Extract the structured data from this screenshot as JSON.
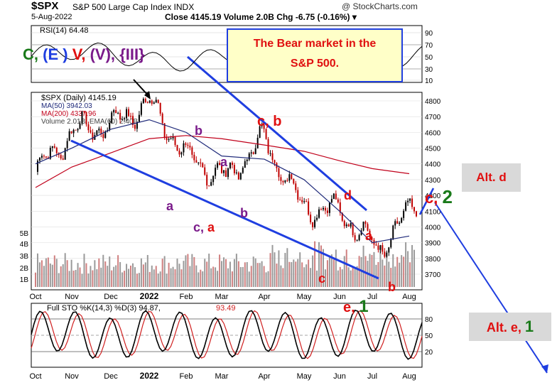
{
  "header": {
    "symbol": "$SPX",
    "name": "S&P 500 Large Cap Index INDX",
    "brand": "@ StockCharts.com",
    "date": "5-Aug-2022",
    "quote": "Close 4145.19  Volume 2.0B  Chg -6.75 (-0.16%) ▾"
  },
  "callout": {
    "line1": "The Bear market in the",
    "line2": "S&P 500."
  },
  "alt_d": "Alt. d",
  "alt_e": {
    "text": "Alt. e, ",
    "num": "1"
  },
  "wave_title": {
    "c": "C,",
    "e": "(E )",
    "v": "V,",
    "pv": "(V),",
    "iii": "{III}"
  },
  "wave_labels": [
    {
      "t": "b",
      "color": "#7a1a8a"
    },
    {
      "t": "a",
      "color": "#7a1a8a"
    },
    {
      "t": "a",
      "color": "#7a1a8a"
    },
    {
      "t": "b",
      "color": "#7a1a8a"
    },
    {
      "t": "c, a",
      "parts": [
        [
          "c, ",
          "#7a1a8a"
        ],
        [
          "a",
          "#e01010"
        ]
      ]
    },
    {
      "t": "c, b",
      "parts": [
        [
          "c, ",
          "#e01010"
        ],
        [
          "b",
          "#e01010"
        ]
      ]
    },
    {
      "t": "d",
      "color": "#e01010"
    },
    {
      "t": "a",
      "color": "#e01010"
    },
    {
      "t": "c",
      "color": "#e01010"
    },
    {
      "t": "b",
      "color": "#e01010"
    },
    {
      "t": "e, 1",
      "parts": [
        [
          "e, ",
          "#e01010"
        ],
        [
          "1",
          "#1a7a1a"
        ]
      ]
    },
    {
      "t": "c, 2",
      "parts": [
        [
          "c, ",
          "#e01010"
        ],
        [
          "2",
          "#1a7a1a"
        ]
      ]
    }
  ],
  "rsi": {
    "label": "RSI(14) 64.48",
    "ticks": [
      "90",
      "70",
      "50",
      "30",
      "10"
    ]
  },
  "price": {
    "legend": [
      "$SPX (Daily) 4145.19",
      "MA(50) 3942.03",
      "MA(200) 4337.96",
      "Volume 2.01B, EMA(60) 2.40B"
    ],
    "ticks": [
      "4800",
      "4700",
      "4600",
      "4500",
      "4400",
      "4300",
      "4200",
      "4100",
      "4000",
      "3900",
      "3800",
      "3700"
    ],
    "vol_ticks": [
      "5B",
      "4B",
      "3B",
      "2B",
      "1B"
    ]
  },
  "sto": {
    "label": "Full STO %K(14,3) %D(3) 94.87, ",
    "label2": "93.49",
    "ticks": [
      "80",
      "50",
      "20"
    ]
  },
  "x_labels": [
    "Oct",
    "Nov",
    "Dec",
    "2022",
    "Feb",
    "Mar",
    "Apr",
    "May",
    "Jun",
    "Jul",
    "Aug"
  ],
  "colors": {
    "price_up": "#000000",
    "price_down": "#c00000",
    "ma50": "#1f2a7a",
    "ma200": "#c0001a",
    "trend": "#1f3ee0",
    "rsi": "#000000"
  },
  "chart_data": {
    "type": "line",
    "title": "S&P 500 Large Cap Index",
    "x": [
      "Oct",
      "Nov",
      "Dec",
      "2022",
      "Feb",
      "Mar",
      "Apr",
      "May",
      "Jun",
      "Jul",
      "Aug"
    ],
    "series": [
      {
        "name": "$SPX (Daily)",
        "values": [
          4350,
          4610,
          4650,
          4790,
          4430,
          4310,
          4560,
          4130,
          4100,
          3850,
          4145
        ]
      },
      {
        "name": "MA(50)",
        "values": [
          4400,
          4500,
          4620,
          4680,
          4600,
          4450,
          4430,
          4300,
          4100,
          3900,
          3942
        ]
      },
      {
        "name": "MA(200)",
        "values": [
          4250,
          4380,
          4470,
          4560,
          4580,
          4560,
          4520,
          4480,
          4420,
          4370,
          4338
        ]
      }
    ],
    "ylim": [
      3650,
      4850
    ]
  }
}
